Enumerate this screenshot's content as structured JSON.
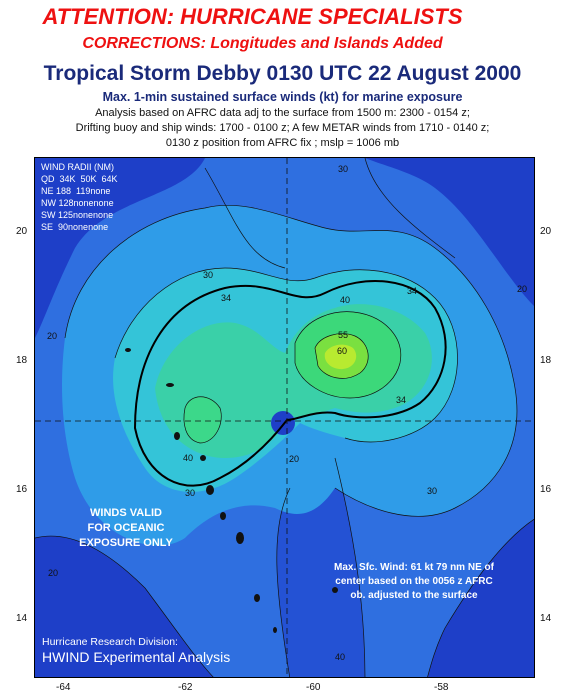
{
  "header": {
    "attention": "ATTENTION: HURRICANE SPECIALISTS",
    "corrections": "CORRECTIONS: Longitudes and Islands Added",
    "title": "Tropical Storm Debby 0130 UTC 22 August 2000",
    "subtitle": "Max. 1-min sustained surface winds (kt) for marine exposure",
    "analysis_lines": [
      "Analysis based on AFRC data adj to the surface from 1500 m: 2300 - 0154 z;",
      "Drifting buoy and ship winds: 1700 - 0100 z; A few METAR winds from 1710 - 0140 z;",
      "0130 z position from AFRC fix ; mslp = 1006 mb"
    ]
  },
  "wind_radii": {
    "title": "WIND RADII (NM)",
    "header_row": "QD  34K  50K  64K",
    "rows": [
      {
        "quadrant": "NE",
        "values": "188  119none"
      },
      {
        "quadrant": "NW",
        "values": "128nonenone"
      },
      {
        "quadrant": "SW",
        "values": "125nonenone"
      },
      {
        "quadrant": "SE",
        "values": " 90nonenone"
      }
    ]
  },
  "notes": {
    "winds_valid": [
      "WINDS VALID",
      "FOR OCEANIC",
      "EXPOSURE ONLY"
    ],
    "max_wind": [
      "Max. Sfc. Wind: 61 kt 79 nm NE of",
      "center based on the 0056 z AFRC",
      "ob. adjusted to the surface"
    ],
    "credit_1": "Hurricane Research Division:",
    "credit_2": "HWIND Experimental Analysis"
  },
  "axes": {
    "latitude_labels": [
      "20",
      "18",
      "16",
      "14"
    ],
    "longitude_labels": [
      "-64",
      "-62",
      "-60",
      "-58"
    ]
  },
  "contour_labels": [
    "30",
    "34",
    "40",
    "55",
    "60",
    "34",
    "34",
    "30",
    "20",
    "20",
    "30",
    "20",
    "20",
    "30",
    "30",
    "20",
    "20",
    "40",
    "30",
    "20",
    "40"
  ],
  "colors": {
    "title_red": "#ee1111",
    "title_blue": "#1a2a7a",
    "deep_blue": "#1e3fc8",
    "mid_blue": "#2f6fe0",
    "cyan": "#2fb8ea",
    "aqua": "#34cfc8",
    "green": "#3cd87a",
    "lime": "#a8e830"
  }
}
